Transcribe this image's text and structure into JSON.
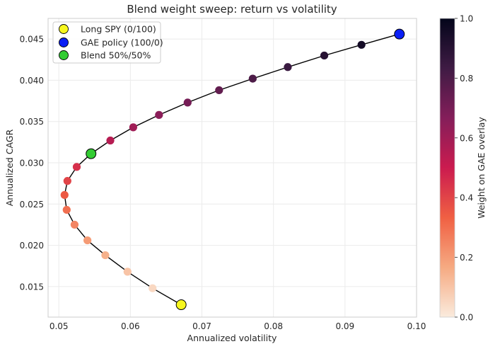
{
  "chart_data": {
    "type": "scatter",
    "title": "Blend weight sweep: return vs volatility",
    "xlabel": "Annualized volatility",
    "ylabel": "Annualized CAGR",
    "xlim": [
      0.0485,
      0.1
    ],
    "ylim": [
      0.0113,
      0.0475
    ],
    "xticks": [
      {
        "value": 0.05,
        "label": "0.05"
      },
      {
        "value": 0.06,
        "label": "0.06"
      },
      {
        "value": 0.07,
        "label": "0.07"
      },
      {
        "value": 0.08,
        "label": "0.08"
      },
      {
        "value": 0.09,
        "label": "0.09"
      },
      {
        "value": 0.1,
        "label": "0.10"
      }
    ],
    "yticks": [
      {
        "value": 0.015,
        "label": "0.015"
      },
      {
        "value": 0.02,
        "label": "0.020"
      },
      {
        "value": 0.025,
        "label": "0.025"
      },
      {
        "value": 0.03,
        "label": "0.030"
      },
      {
        "value": 0.035,
        "label": "0.035"
      },
      {
        "value": 0.04,
        "label": "0.040"
      },
      {
        "value": 0.045,
        "label": "0.045"
      }
    ],
    "grid": true,
    "series": [
      {
        "name": "blend sweep",
        "color_by": "weight",
        "points": [
          {
            "weight": 0.0,
            "x": 0.0671,
            "y": 0.0128
          },
          {
            "weight": 0.05,
            "x": 0.0631,
            "y": 0.0148
          },
          {
            "weight": 0.1,
            "x": 0.0596,
            "y": 0.0168
          },
          {
            "weight": 0.15,
            "x": 0.0565,
            "y": 0.0188
          },
          {
            "weight": 0.2,
            "x": 0.054,
            "y": 0.0206
          },
          {
            "weight": 0.25,
            "x": 0.0522,
            "y": 0.0225
          },
          {
            "weight": 0.3,
            "x": 0.0511,
            "y": 0.0243
          },
          {
            "weight": 0.35,
            "x": 0.0508,
            "y": 0.0261
          },
          {
            "weight": 0.4,
            "x": 0.0512,
            "y": 0.0278
          },
          {
            "weight": 0.45,
            "x": 0.0525,
            "y": 0.0295
          },
          {
            "weight": 0.5,
            "x": 0.0545,
            "y": 0.0311
          },
          {
            "weight": 0.55,
            "x": 0.0572,
            "y": 0.0327
          },
          {
            "weight": 0.6,
            "x": 0.0604,
            "y": 0.0343
          },
          {
            "weight": 0.65,
            "x": 0.064,
            "y": 0.0358
          },
          {
            "weight": 0.7,
            "x": 0.068,
            "y": 0.0373
          },
          {
            "weight": 0.75,
            "x": 0.0724,
            "y": 0.0388
          },
          {
            "weight": 0.8,
            "x": 0.0771,
            "y": 0.0402
          },
          {
            "weight": 0.85,
            "x": 0.082,
            "y": 0.0416
          },
          {
            "weight": 0.9,
            "x": 0.0871,
            "y": 0.043
          },
          {
            "weight": 0.95,
            "x": 0.0923,
            "y": 0.0443
          },
          {
            "weight": 1.0,
            "x": 0.0976,
            "y": 0.0456
          }
        ]
      }
    ],
    "highlights": [
      {
        "name": "Long SPY (0/100)",
        "x": 0.0671,
        "y": 0.0128,
        "color": "#f7f71e"
      },
      {
        "name": "GAE policy (100/0)",
        "x": 0.0976,
        "y": 0.0456,
        "color": "#0a1ff5"
      },
      {
        "name": "Blend 50%/50%",
        "x": 0.0545,
        "y": 0.0311,
        "color": "#33cc33"
      }
    ],
    "legend": {
      "position": "top-left",
      "entries": [
        "Long SPY (0/100)",
        "GAE policy (100/0)",
        "Blend 50%/50%"
      ]
    },
    "colorbar": {
      "label": "Weight on GAE overlay",
      "range": [
        0.0,
        1.0
      ],
      "ticks": [
        {
          "value": 0.0,
          "label": "0.0"
        },
        {
          "value": 0.2,
          "label": "0.2"
        },
        {
          "value": 0.4,
          "label": "0.4"
        },
        {
          "value": 0.6,
          "label": "0.6"
        },
        {
          "value": 0.8,
          "label": "0.8"
        },
        {
          "value": 1.0,
          "label": "1.0"
        }
      ],
      "colormap": [
        "#faebdd",
        "#f6aa82",
        "#f06043",
        "#cb1b4f",
        "#841e5a",
        "#3f1b44",
        "#03051a"
      ]
    },
    "colors": {
      "line": "#000000",
      "grid": "#ebebeb",
      "axes_edge": "#cccccc"
    }
  }
}
